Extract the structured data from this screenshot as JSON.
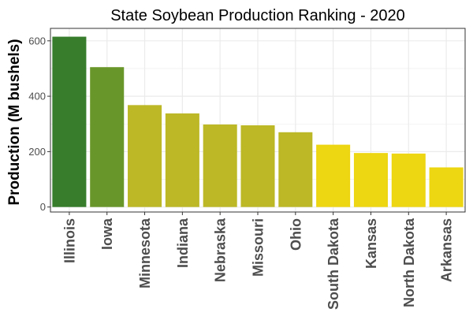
{
  "chart_data": {
    "type": "bar",
    "title": "State Soybean Production Ranking - 2020",
    "xlabel": "",
    "ylabel": "Production (M bushels)",
    "categories": [
      "Illinois",
      "Iowa",
      "Minnesota",
      "Indiana",
      "Nebraska",
      "Missouri",
      "Ohio",
      "South Dakota",
      "Kansas",
      "North Dakota",
      "Arkansas"
    ],
    "values": [
      615,
      505,
      368,
      338,
      298,
      295,
      270,
      225,
      195,
      193,
      143
    ],
    "colors": [
      "#377D2C",
      "#69962A",
      "#BCB826",
      "#BCB826",
      "#BCB826",
      "#BCB826",
      "#BCB826",
      "#EDD612",
      "#EDD612",
      "#EDD612",
      "#EDD612"
    ],
    "yticks": [
      0,
      200,
      400,
      600
    ],
    "ylim": [
      -18,
      645
    ],
    "grid": true,
    "legend": "none",
    "panel_background": "#ffffff",
    "grid_color": "#ebebeb",
    "border_color": "#333333"
  }
}
